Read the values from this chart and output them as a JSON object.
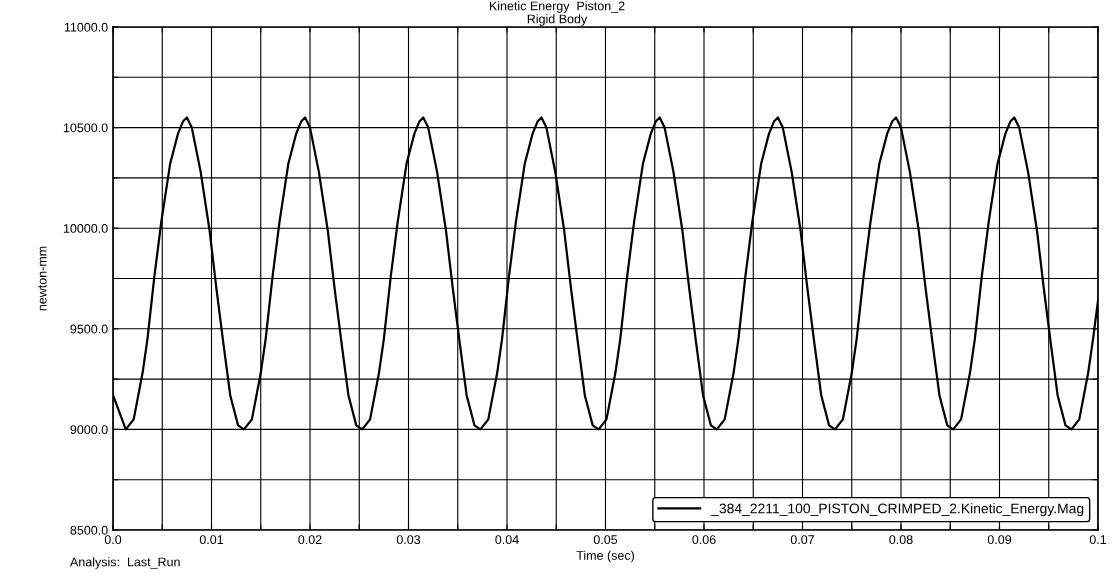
{
  "chart_data": {
    "type": "line",
    "title": "Kinetic Energy  Piston_2",
    "subtitle": "Rigid Body",
    "xlabel": "Time (sec)",
    "ylabel": "newton-mm",
    "annotations": [
      "Analysis:  Last_Run"
    ],
    "xlim": [
      0.0,
      0.1
    ],
    "xticks": [
      {
        "value": 0.0,
        "label": "0.0"
      },
      {
        "value": 0.005,
        "label": null
      },
      {
        "value": 0.01,
        "label": "0.01"
      },
      {
        "value": 0.015,
        "label": null
      },
      {
        "value": 0.02,
        "label": "0.02"
      },
      {
        "value": 0.025,
        "label": null
      },
      {
        "value": 0.03,
        "label": "0.03"
      },
      {
        "value": 0.035,
        "label": null
      },
      {
        "value": 0.04,
        "label": "0.04"
      },
      {
        "value": 0.045,
        "label": null
      },
      {
        "value": 0.05,
        "label": "0.05"
      },
      {
        "value": 0.055,
        "label": null
      },
      {
        "value": 0.06,
        "label": "0.06"
      },
      {
        "value": 0.065,
        "label": null
      },
      {
        "value": 0.07,
        "label": "0.07"
      },
      {
        "value": 0.075,
        "label": null
      },
      {
        "value": 0.08,
        "label": "0.08"
      },
      {
        "value": 0.085,
        "label": null
      },
      {
        "value": 0.09,
        "label": "0.09"
      },
      {
        "value": 0.095,
        "label": null
      },
      {
        "value": 0.1,
        "label": "0.1"
      }
    ],
    "ylim": [
      8500,
      11000
    ],
    "yticks": [
      {
        "value": 8500,
        "label": "8500.0"
      },
      {
        "value": 8750,
        "label": null
      },
      {
        "value": 9000,
        "label": "9000.0"
      },
      {
        "value": 9250,
        "label": null
      },
      {
        "value": 9500,
        "label": "9500.0"
      },
      {
        "value": 9750,
        "label": null
      },
      {
        "value": 10000,
        "label": "10000.0"
      },
      {
        "value": 10250,
        "label": null
      },
      {
        "value": 10500,
        "label": "10500.0"
      },
      {
        "value": 10750,
        "label": null
      },
      {
        "value": 11000,
        "label": "11000.0"
      }
    ],
    "grid": true,
    "legend": "bottom right",
    "marker": "none",
    "line_style": "solid",
    "x": [
      0.0,
      0.0013,
      0.0021,
      0.003,
      0.0035,
      0.0042,
      0.0049,
      0.0058,
      0.0066,
      0.0071,
      0.0075,
      0.008,
      0.0089,
      0.0098,
      0.0105,
      0.0112,
      0.0119,
      0.0127,
      0.0133,
      0.0141,
      0.015,
      0.0155,
      0.0162,
      0.0169,
      0.0178,
      0.0186,
      0.0191,
      0.0195,
      0.02,
      0.0209,
      0.0218,
      0.0225,
      0.0232,
      0.0239,
      0.0247,
      0.0253,
      0.0261,
      0.027,
      0.0275,
      0.0282,
      0.0289,
      0.0298,
      0.0306,
      0.0311,
      0.0315,
      0.032,
      0.0329,
      0.0338,
      0.0345,
      0.0352,
      0.0359,
      0.0367,
      0.0373,
      0.0381,
      0.039,
      0.0395,
      0.0402,
      0.0409,
      0.0418,
      0.0426,
      0.0431,
      0.0435,
      0.044,
      0.0449,
      0.0458,
      0.0465,
      0.0472,
      0.0479,
      0.0487,
      0.0493,
      0.0501,
      0.051,
      0.0515,
      0.0522,
      0.0529,
      0.0538,
      0.0546,
      0.0551,
      0.0555,
      0.056,
      0.0569,
      0.0578,
      0.0585,
      0.0592,
      0.0599,
      0.0607,
      0.0613,
      0.0621,
      0.063,
      0.0635,
      0.0642,
      0.0649,
      0.0658,
      0.0666,
      0.0671,
      0.0675,
      0.068,
      0.0689,
      0.0698,
      0.0705,
      0.0712,
      0.0719,
      0.0727,
      0.0733,
      0.0741,
      0.075,
      0.0755,
      0.0762,
      0.0769,
      0.0778,
      0.0786,
      0.0791,
      0.0795,
      0.08,
      0.0809,
      0.0818,
      0.0825,
      0.0832,
      0.0839,
      0.0847,
      0.0853,
      0.0861,
      0.087,
      0.0875,
      0.0882,
      0.0889,
      0.0898,
      0.0906,
      0.0911,
      0.0915,
      0.092,
      0.0929,
      0.0938,
      0.0945,
      0.0952,
      0.0959,
      0.0967,
      0.0973,
      0.0981,
      0.099,
      0.0995,
      0.1
    ],
    "series": [
      {
        "name": "_384_2211_100_PISTON_CRIMPED_2.Kinetic_Energy.Mag",
        "color": "#000000",
        "values": [
          9170,
          9000,
          9050,
          9280,
          9450,
          9760,
          10030,
          10320,
          10470,
          10530,
          10550,
          10500,
          10280,
          9990,
          9700,
          9430,
          9170,
          9020,
          9000,
          9050,
          9280,
          9450,
          9760,
          10030,
          10320,
          10470,
          10530,
          10550,
          10500,
          10280,
          9990,
          9700,
          9430,
          9170,
          9020,
          9000,
          9050,
          9280,
          9450,
          9760,
          10030,
          10320,
          10470,
          10530,
          10550,
          10500,
          10280,
          9990,
          9700,
          9430,
          9170,
          9020,
          9000,
          9050,
          9280,
          9450,
          9760,
          10030,
          10320,
          10470,
          10530,
          10550,
          10500,
          10280,
          9990,
          9700,
          9430,
          9170,
          9020,
          9000,
          9050,
          9280,
          9450,
          9760,
          10030,
          10320,
          10470,
          10530,
          10550,
          10500,
          10280,
          9990,
          9700,
          9430,
          9170,
          9020,
          9000,
          9050,
          9280,
          9450,
          9760,
          10030,
          10320,
          10470,
          10530,
          10550,
          10500,
          10280,
          9990,
          9700,
          9430,
          9170,
          9020,
          9000,
          9050,
          9280,
          9450,
          9760,
          10030,
          10320,
          10470,
          10530,
          10550,
          10500,
          10280,
          9990,
          9700,
          9430,
          9170,
          9020,
          9000,
          9050,
          9280,
          9450,
          9760,
          10030,
          10320,
          10470,
          10530,
          10550,
          10500,
          10280,
          9990,
          9700,
          9430,
          9170,
          9020,
          9000,
          9050,
          9280,
          9450,
          9640
        ]
      }
    ]
  }
}
